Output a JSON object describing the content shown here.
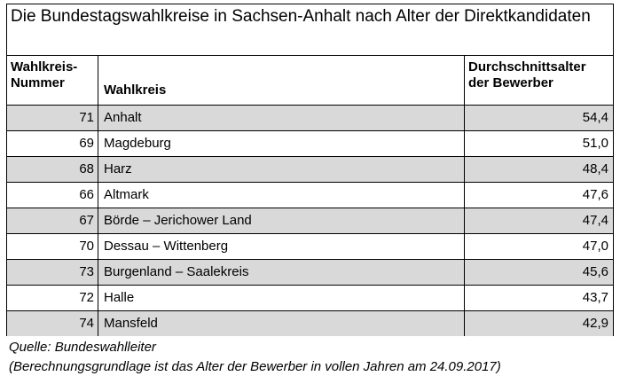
{
  "title": "Die Bundestagswahlkreise in Sachsen-Anhalt nach Alter der Direktkandidaten",
  "columns": {
    "number": "Wahlkreis-\nNummer",
    "name": "Wahlkreis",
    "age": "Durchschnittsalter\nder Bewerber"
  },
  "rows": [
    {
      "number": "71",
      "name": "Anhalt",
      "age": "54,4"
    },
    {
      "number": "69",
      "name": "Magdeburg",
      "age": "51,0"
    },
    {
      "number": "68",
      "name": "Harz",
      "age": "48,4"
    },
    {
      "number": "66",
      "name": "Altmark",
      "age": "47,6"
    },
    {
      "number": "67",
      "name": "Börde – Jerichower Land",
      "age": "47,4"
    },
    {
      "number": "70",
      "name": "Dessau – Wittenberg",
      "age": "47,0"
    },
    {
      "number": "73",
      "name": "Burgenland – Saalekreis",
      "age": "45,6"
    },
    {
      "number": "72",
      "name": "Halle",
      "age": "43,7"
    },
    {
      "number": "74",
      "name": "Mansfeld",
      "age": "42,9"
    }
  ],
  "source": "Quelle: Bundeswahlleiter",
  "note": "(Berechnungsgrundlage ist das Alter der Bewerber in vollen Jahren am 24.09.2017)"
}
